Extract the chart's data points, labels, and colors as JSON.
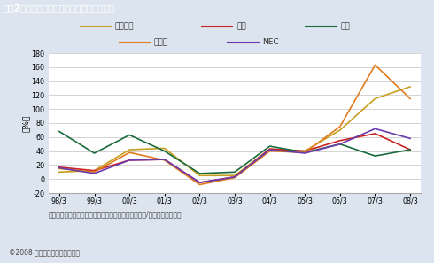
{
  "title": "図表2：キャッシュフローカバレッジの推移",
  "title_bg": "#5a7fa8",
  "title_color": "#ffffff",
  "ylabel": "（%）",
  "xlabel_note": "キャッシュフローカバレッジ：営業キャッシュフロー/純有利子負債総額",
  "copyright": "©2008 スタンダード＆プアーズ",
  "x_labels": [
    "98/3",
    "99/3",
    "00/3",
    "01/3",
    "02/3",
    "03/3",
    "04/3",
    "05/3",
    "06/3",
    "07/3",
    "08/3"
  ],
  "ylim": [
    -20,
    180
  ],
  "yticks": [
    -20,
    0,
    20,
    40,
    60,
    80,
    100,
    120,
    140,
    160,
    180
  ],
  "series": [
    {
      "name": "三菱電機",
      "color": "#C8A020",
      "values": [
        10,
        12,
        42,
        44,
        5,
        5,
        43,
        40,
        70,
        115,
        132
      ]
    },
    {
      "name": "東芝",
      "color": "#CC2222",
      "values": [
        17,
        12,
        27,
        28,
        -5,
        3,
        43,
        40,
        55,
        65,
        42
      ]
    },
    {
      "name": "日立",
      "color": "#1a6b3c",
      "values": [
        68,
        37,
        63,
        40,
        8,
        10,
        47,
        38,
        50,
        33,
        42
      ]
    },
    {
      "name": "富士通",
      "color": "#E07B20",
      "values": [
        15,
        10,
        38,
        27,
        -8,
        2,
        40,
        38,
        75,
        163,
        115
      ]
    },
    {
      "name": "NEC",
      "color": "#6A3BAF",
      "values": [
        16,
        8,
        27,
        28,
        -5,
        3,
        42,
        37,
        50,
        72,
        58
      ]
    }
  ],
  "legend_rows": [
    [
      "三菱電機",
      "東芝",
      "日立"
    ],
    [
      "富士通",
      "NEC"
    ]
  ],
  "bg_color": "#dce5ef",
  "plot_bg": "#ffffff",
  "grid_color": "#cccccc"
}
